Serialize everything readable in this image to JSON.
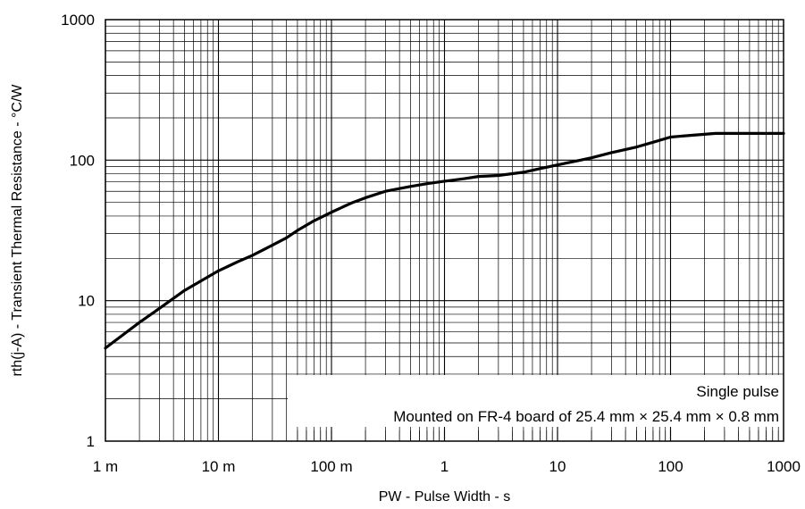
{
  "chart_data": {
    "type": "line",
    "xscale": "log",
    "yscale": "log",
    "xlim": [
      0.001,
      1000
    ],
    "ylim": [
      1,
      1000
    ],
    "grid": true,
    "xlabel": "PW - Pulse Width - s",
    "ylabel": "rth(j-A) - Transient Thermal Resistance - °C/W",
    "x_ticks": [
      {
        "value": 0.001,
        "label": "1 m"
      },
      {
        "value": 0.01,
        "label": "10 m"
      },
      {
        "value": 0.1,
        "label": "100 m"
      },
      {
        "value": 1,
        "label": "1"
      },
      {
        "value": 10,
        "label": "10"
      },
      {
        "value": 100,
        "label": "100"
      },
      {
        "value": 1000,
        "label": "1000"
      }
    ],
    "y_ticks": [
      {
        "value": 1,
        "label": "1"
      },
      {
        "value": 10,
        "label": "10"
      },
      {
        "value": 100,
        "label": "100"
      },
      {
        "value": 1000,
        "label": "1000"
      }
    ],
    "annotations": [
      "Single pulse",
      "Mounted on FR-4 board of 25.4 mm × 25.4 mm × 0.8 mm"
    ],
    "series": [
      {
        "x": [
          0.001,
          0.002,
          0.003,
          0.005,
          0.007,
          0.01,
          0.015,
          0.02,
          0.03,
          0.04,
          0.05,
          0.07,
          0.1,
          0.15,
          0.2,
          0.3,
          0.5,
          0.7,
          1,
          1.5,
          2,
          3,
          5,
          7,
          10,
          15,
          20,
          30,
          50,
          70,
          100,
          150,
          250,
          500,
          1000
        ],
        "y": [
          4.6,
          7.0,
          8.8,
          11.8,
          13.8,
          16.3,
          19.0,
          21.0,
          24.8,
          28.0,
          31.6,
          37.0,
          42.6,
          49.5,
          54.0,
          60.0,
          65.0,
          68.0,
          70.8,
          73.8,
          76.5,
          77.8,
          82.0,
          87.0,
          92.5,
          99.0,
          104.0,
          113.0,
          124.0,
          134.0,
          146.0,
          150.0,
          155.0,
          155.0,
          155.0
        ]
      }
    ]
  }
}
